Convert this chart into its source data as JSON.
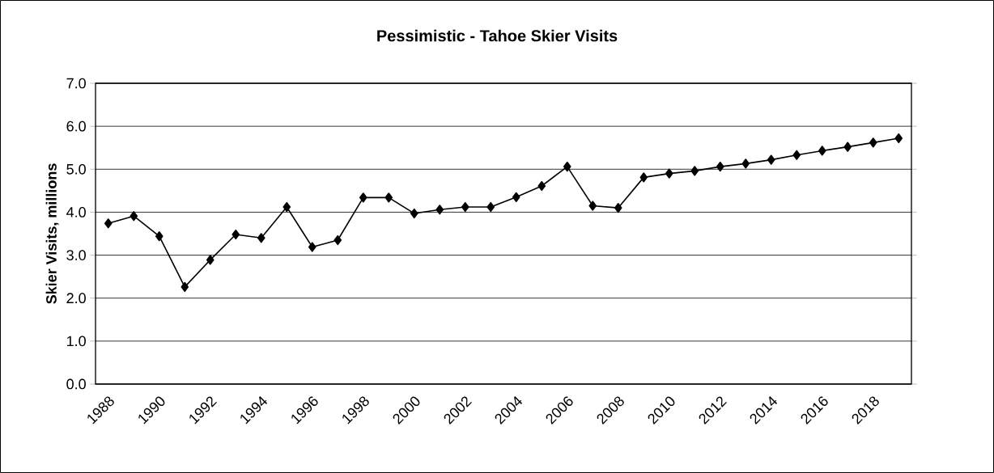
{
  "chart_data": {
    "type": "line",
    "title": "Pessimistic - Tahoe Skier Visits",
    "ylabel": "Skier Visits, millions",
    "categories": [
      "1988",
      null,
      "1990",
      null,
      "1992",
      null,
      "1994",
      null,
      "1996",
      null,
      "1998",
      null,
      "2000",
      null,
      "2002",
      null,
      "2004",
      null,
      "2006",
      null,
      "2008",
      null,
      "2010",
      null,
      "2012",
      null,
      "2014",
      null,
      "2016",
      null,
      "2018",
      null
    ],
    "series": [
      {
        "color": "#000000",
        "values": [
          3.74,
          3.91,
          3.44,
          2.26,
          2.89,
          3.48,
          3.4,
          4.12,
          3.19,
          3.35,
          4.34,
          4.34,
          3.97,
          4.06,
          4.12,
          4.12,
          4.35,
          4.61,
          5.06,
          4.15,
          4.1,
          4.81,
          4.9,
          4.96,
          5.06,
          5.13,
          5.22,
          5.33,
          5.43,
          5.52,
          5.62,
          5.72
        ]
      }
    ],
    "ylim": [
      0,
      7
    ],
    "yticks": [
      {
        "value": 0,
        "label": "0.0"
      },
      {
        "value": 1,
        "label": "1.0"
      },
      {
        "value": 2,
        "label": "2.0"
      },
      {
        "value": 3,
        "label": "3.0"
      },
      {
        "value": 4,
        "label": "4.0"
      },
      {
        "value": 5,
        "label": "5.0"
      },
      {
        "value": 6,
        "label": "6.0"
      },
      {
        "value": 7,
        "label": "7.0"
      }
    ],
    "grid": "y",
    "marker": "diamond",
    "line_style": "solid"
  }
}
